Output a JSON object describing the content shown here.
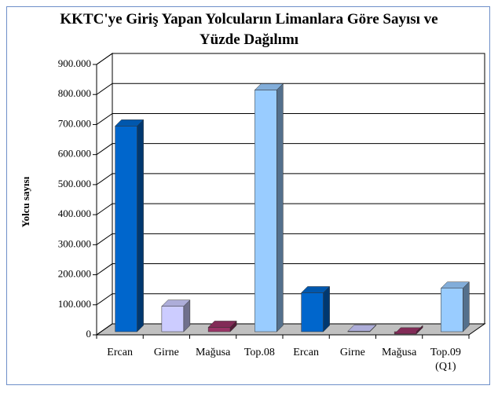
{
  "chart_data": {
    "type": "bar3d",
    "title": "KKTC'ye Giriş Yapan Yolcuların Limanlara Göre Sayısı ve Yüzde Dağılımı",
    "y_label": "Yolcu sayısı",
    "categories": [
      "Ercan",
      "Girne",
      "Mağusa",
      "Top.08",
      "Ercan",
      "Girne",
      "Mağusa",
      "Top.09 (Q1)"
    ],
    "values": [
      695000,
      95000,
      25000,
      815000,
      140000,
      12000,
      3000,
      155000
    ],
    "colors": [
      "#0066cc",
      "#ccccff",
      "#993366",
      "#99ccff",
      "#0066cc",
      "#ccccff",
      "#993366",
      "#99ccff"
    ],
    "ylim": [
      0,
      900000
    ],
    "yticks": [
      {
        "value": 0,
        "label": "0"
      },
      {
        "value": 100000,
        "label": "100.000"
      },
      {
        "value": 200000,
        "label": "200.000"
      },
      {
        "value": 300000,
        "label": "300.000"
      },
      {
        "value": 400000,
        "label": "400.000"
      },
      {
        "value": 500000,
        "label": "500.000"
      },
      {
        "value": 600000,
        "label": "600.000"
      },
      {
        "value": 700000,
        "label": "700.000"
      },
      {
        "value": 800000,
        "label": "800.000"
      },
      {
        "value": 900000,
        "label": "900.000"
      }
    ],
    "grid": true
  }
}
